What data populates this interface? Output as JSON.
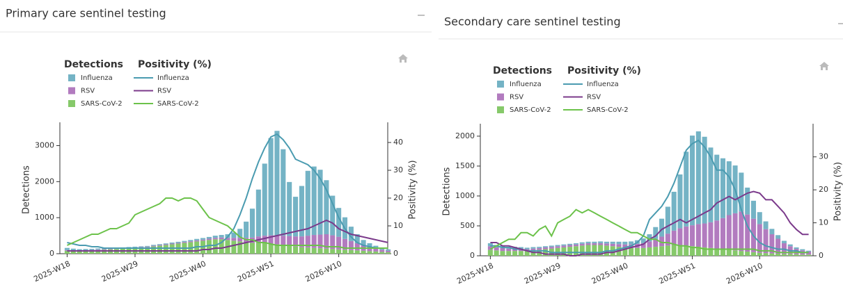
{
  "chart_data": [
    {
      "type": "bar",
      "stacked": true,
      "title": "Primary care sentinel testing",
      "legend_titles": [
        "Detections",
        "Positivity (%)"
      ],
      "ylabel": "Detections",
      "y2label": "Positivity (%)",
      "categories": [
        "2025-W18",
        null,
        null,
        null,
        null,
        null,
        null,
        null,
        null,
        null,
        null,
        "2025-W29",
        null,
        null,
        null,
        null,
        null,
        null,
        null,
        null,
        null,
        null,
        "2025-W40",
        null,
        null,
        null,
        null,
        null,
        null,
        null,
        null,
        null,
        null,
        "2025-W51",
        null,
        null,
        null,
        null,
        null,
        null,
        null,
        null,
        null,
        null,
        "2026-W10",
        null,
        null,
        null,
        null,
        null,
        null,
        null,
        null
      ],
      "ylim": [
        0,
        3550
      ],
      "yticks": [
        0,
        1000,
        2000,
        3000
      ],
      "y2lim": [
        0,
        46
      ],
      "y2ticks": [
        0,
        10,
        20,
        30,
        40
      ],
      "series": [
        {
          "name": "Influenza",
          "type": "bar",
          "color": "#74b3c5",
          "values": [
            60,
            50,
            40,
            35,
            30,
            30,
            25,
            25,
            20,
            20,
            20,
            20,
            20,
            20,
            25,
            25,
            25,
            30,
            30,
            30,
            35,
            40,
            45,
            50,
            60,
            70,
            100,
            150,
            250,
            450,
            800,
            1300,
            2000,
            2700,
            2900,
            2400,
            1500,
            1100,
            1400,
            1800,
            1900,
            1800,
            1500,
            1100,
            800,
            600,
            400,
            250,
            150,
            100,
            70,
            50,
            40
          ]
        },
        {
          "name": "RSV",
          "type": "bar",
          "color": "#b27bbf",
          "values": [
            20,
            20,
            15,
            15,
            15,
            15,
            15,
            15,
            15,
            15,
            15,
            15,
            15,
            15,
            20,
            20,
            20,
            20,
            20,
            25,
            25,
            30,
            30,
            35,
            40,
            50,
            60,
            80,
            100,
            120,
            150,
            180,
            200,
            230,
            250,
            260,
            270,
            280,
            300,
            330,
            360,
            380,
            400,
            380,
            350,
            300,
            250,
            200,
            150,
            120,
            90,
            60,
            40
          ]
        },
        {
          "name": "SARS-CoV-2",
          "type": "bar",
          "color": "#86c96a",
          "values": [
            80,
            70,
            70,
            80,
            90,
            100,
            110,
            120,
            130,
            140,
            150,
            160,
            170,
            180,
            200,
            220,
            240,
            260,
            280,
            300,
            320,
            340,
            360,
            380,
            400,
            400,
            380,
            360,
            340,
            320,
            300,
            300,
            300,
            280,
            260,
            240,
            220,
            200,
            180,
            170,
            160,
            150,
            140,
            130,
            120,
            110,
            100,
            90,
            80,
            70,
            60,
            50,
            40
          ]
        },
        {
          "name": "Influenza",
          "type": "line",
          "axis": "y2",
          "color": "#4a9bb0",
          "values": [
            4,
            3.5,
            3,
            3,
            2.5,
            2.5,
            2,
            2,
            2,
            2,
            2,
            2,
            2,
            2,
            2,
            2,
            2,
            2,
            2,
            2,
            2,
            2.5,
            2.5,
            3,
            3,
            4,
            6,
            9,
            14,
            20,
            27,
            33,
            38,
            42,
            43,
            41,
            38,
            34,
            33,
            32,
            30,
            27,
            23,
            18,
            13,
            9,
            6,
            4,
            3,
            2.5,
            2,
            2,
            2
          ]
        },
        {
          "name": "RSV",
          "type": "line",
          "axis": "y2",
          "color": "#7b3a8b",
          "values": [
            1,
            1,
            1,
            1,
            1,
            1,
            1,
            1,
            1,
            1,
            1,
            1,
            1,
            1,
            1,
            1,
            1,
            1,
            1,
            1,
            1,
            1,
            1.5,
            1.5,
            2,
            2,
            2.5,
            3,
            3.5,
            4,
            4.5,
            5,
            5.5,
            6,
            6.5,
            7,
            7.5,
            8,
            8.5,
            9,
            10,
            11,
            12,
            11,
            9,
            8,
            7,
            6.5,
            6,
            5.5,
            5,
            4.5,
            4
          ]
        },
        {
          "name": "SARS-CoV-2",
          "type": "line",
          "axis": "y2",
          "color": "#6cc24a",
          "values": [
            3,
            4,
            5,
            6,
            7,
            7,
            8,
            9,
            9,
            10,
            11,
            14,
            15,
            16,
            17,
            18,
            20,
            20,
            19,
            20,
            20,
            19,
            16,
            13,
            12,
            11,
            10,
            8,
            6,
            5,
            5,
            4,
            4,
            3.5,
            3,
            3,
            3,
            3,
            3,
            3,
            3,
            3,
            2.5,
            2.5,
            2.5,
            2,
            2,
            2,
            2,
            2,
            2,
            2,
            2
          ]
        }
      ]
    },
    {
      "type": "bar",
      "stacked": true,
      "title": "Secondary care sentinel testing",
      "legend_titles": [
        "Detections",
        "Positivity (%)"
      ],
      "ylabel": "Detections",
      "y2label": "Positivity (%)",
      "categories": [
        "2025-W18",
        null,
        null,
        null,
        null,
        null,
        null,
        null,
        null,
        null,
        null,
        "2025-W29",
        null,
        null,
        null,
        null,
        null,
        null,
        null,
        null,
        null,
        null,
        "2025-W40",
        null,
        null,
        null,
        null,
        null,
        null,
        null,
        null,
        null,
        null,
        "2025-W51",
        null,
        null,
        null,
        null,
        null,
        null,
        null,
        null,
        null,
        null,
        "2026-W10",
        null,
        null,
        null,
        null,
        null,
        null,
        null,
        null
      ],
      "ylim": [
        0,
        2150
      ],
      "yticks": [
        0,
        500,
        1000,
        1500,
        2000
      ],
      "y2lim": [
        0,
        39
      ],
      "y2ticks": [
        0,
        10,
        20,
        30
      ],
      "series": [
        {
          "name": "Influenza",
          "type": "bar",
          "color": "#74b3c5",
          "values": [
            50,
            40,
            40,
            30,
            30,
            30,
            25,
            25,
            20,
            20,
            20,
            20,
            20,
            20,
            20,
            25,
            25,
            25,
            30,
            30,
            35,
            40,
            45,
            50,
            60,
            80,
            120,
            200,
            300,
            450,
            650,
            900,
            1250,
            1500,
            1550,
            1450,
            1250,
            1100,
            1000,
            900,
            800,
            650,
            450,
            300,
            200,
            130,
            90,
            60,
            40,
            30,
            25,
            20,
            15
          ]
        },
        {
          "name": "RSV",
          "type": "bar",
          "color": "#b27bbf",
          "values": [
            60,
            50,
            50,
            40,
            40,
            35,
            30,
            30,
            30,
            30,
            30,
            30,
            30,
            30,
            30,
            30,
            30,
            30,
            30,
            35,
            40,
            45,
            50,
            60,
            70,
            80,
            100,
            130,
            160,
            200,
            240,
            280,
            320,
            350,
            380,
            400,
            430,
            470,
            520,
            580,
            620,
            660,
            620,
            560,
            480,
            400,
            320,
            250,
            180,
            130,
            90,
            70,
            50
          ]
        },
        {
          "name": "SARS-CoV-2",
          "type": "bar",
          "color": "#86c96a",
          "values": [
            100,
            90,
            80,
            80,
            80,
            80,
            80,
            90,
            100,
            110,
            120,
            130,
            140,
            150,
            160,
            170,
            180,
            180,
            180,
            170,
            160,
            150,
            140,
            130,
            130,
            130,
            140,
            150,
            160,
            170,
            180,
            180,
            170,
            160,
            150,
            140,
            130,
            120,
            110,
            100,
            90,
            80,
            70,
            60,
            50,
            45,
            40,
            35,
            30,
            30,
            25,
            20,
            20
          ]
        },
        {
          "name": "Influenza",
          "type": "line",
          "axis": "y2",
          "color": "#4a9bb0",
          "values": [
            3,
            3,
            2.5,
            2.5,
            2,
            2,
            1.5,
            1.5,
            1.5,
            1.5,
            1,
            1,
            1,
            1,
            1,
            1,
            1,
            1,
            1,
            1.5,
            1.5,
            2,
            2.5,
            3,
            4,
            6,
            11,
            13,
            15,
            18,
            22,
            27,
            32,
            34,
            35,
            33,
            30,
            26,
            26,
            24,
            20,
            14,
            9,
            6,
            4,
            3,
            2.5,
            2,
            2,
            1.5,
            1.5,
            1,
            1
          ]
        },
        {
          "name": "RSV",
          "type": "line",
          "axis": "y2",
          "color": "#7b3a8b",
          "values": [
            4,
            4,
            3,
            3,
            2.5,
            2,
            1.5,
            1,
            1,
            0.5,
            0.5,
            0.5,
            0.5,
            0,
            0,
            0.5,
            0.5,
            0.5,
            0.5,
            1,
            1,
            1.5,
            2,
            2.5,
            3,
            3.5,
            5,
            6,
            8,
            9,
            10,
            11,
            10,
            11,
            12,
            13,
            14,
            16,
            17,
            18,
            17,
            18,
            19,
            19.5,
            19,
            17,
            17,
            15,
            13,
            10,
            8,
            6.5,
            6.5
          ]
        },
        {
          "name": "SARS-CoV-2",
          "type": "line",
          "axis": "y2",
          "color": "#6cc24a",
          "values": [
            2,
            3,
            4,
            5,
            5,
            7,
            7,
            6,
            8,
            9,
            6,
            10,
            11,
            12,
            14,
            13,
            14,
            13,
            12,
            11,
            10,
            9,
            8,
            7,
            7,
            6,
            5,
            5,
            4,
            4,
            3.5,
            3,
            3,
            2.5,
            2.5,
            2,
            2,
            2,
            2,
            2,
            2,
            2,
            2,
            2,
            1.5,
            1.5,
            1.5,
            1,
            1,
            1,
            1,
            1,
            1
          ]
        }
      ]
    }
  ]
}
